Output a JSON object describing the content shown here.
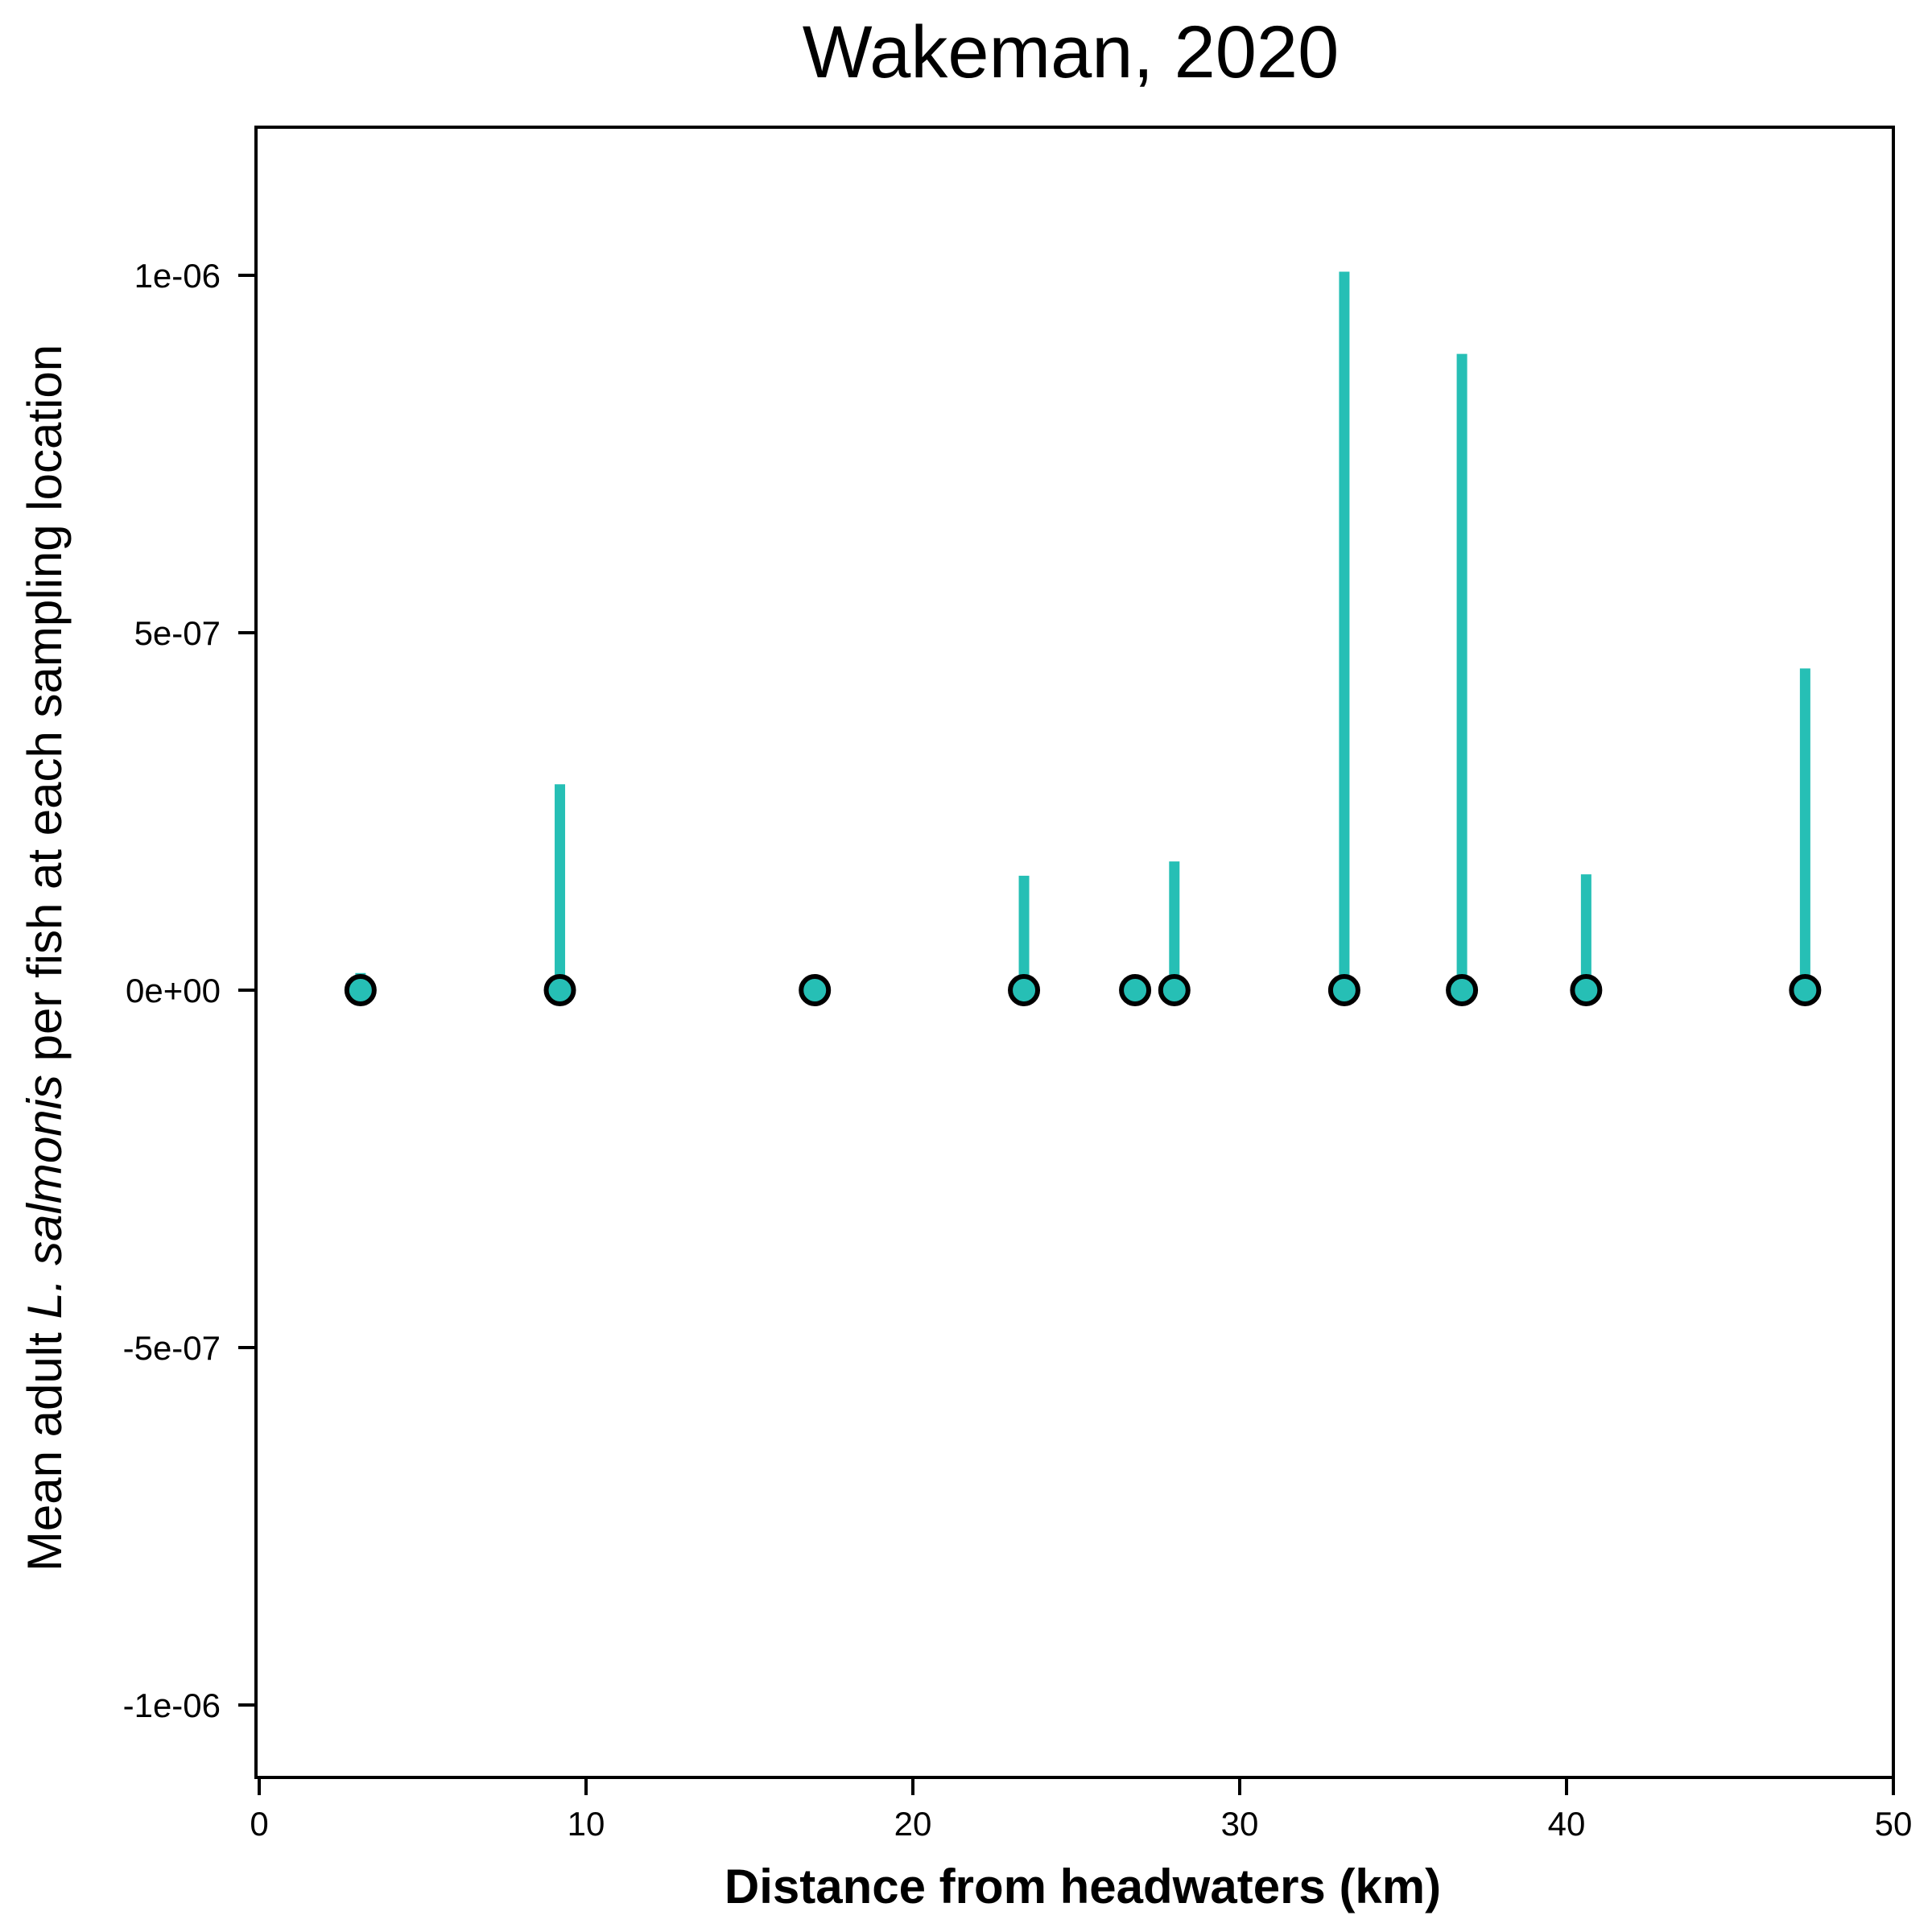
{
  "chart_data": {
    "type": "scatter",
    "title": "Wakeman, 2020",
    "xlabel": "Distance from headwaters (km)",
    "ylabel": {
      "prefix": "Mean adult ",
      "species": "L. salmonis",
      "suffix": " per fish at each sampling location"
    },
    "xlim": [
      0,
      50
    ],
    "ylim": [
      -1.1e-06,
      1.2e-06
    ],
    "x_ticks": [
      {
        "value": 0,
        "label": "0"
      },
      {
        "value": 10,
        "label": "10"
      },
      {
        "value": 20,
        "label": "20"
      },
      {
        "value": 30,
        "label": "30"
      },
      {
        "value": 40,
        "label": "40"
      },
      {
        "value": 50,
        "label": "50"
      }
    ],
    "y_ticks": [
      {
        "value": 1e-06,
        "label": "1e-06"
      },
      {
        "value": 5e-07,
        "label": "5e-07"
      },
      {
        "value": 0,
        "label": "0e+00"
      },
      {
        "value": -5e-07,
        "label": "-5e-07"
      },
      {
        "value": -1e-06,
        "label": "-1e-06"
      }
    ],
    "grid": false,
    "colors": {
      "point_fill": "#26bfb5",
      "point_edge": "#000000",
      "error_bar": "#26bfb5",
      "axes": "#000000"
    },
    "series": [
      {
        "x": [
          3.1,
          9.2,
          17.0,
          23.4,
          26.8,
          28.0,
          33.2,
          36.8,
          40.6,
          47.3
        ],
        "y": [
          0,
          0,
          0,
          0,
          0,
          0,
          0,
          0,
          0,
          0
        ],
        "error_upper": [
          2.4e-08,
          2.88e-07,
          1.2e-08,
          1.6e-07,
          1.2e-08,
          1.8e-07,
          1.005e-06,
          8.9e-07,
          1.62e-07,
          4.5e-07
        ]
      }
    ]
  }
}
